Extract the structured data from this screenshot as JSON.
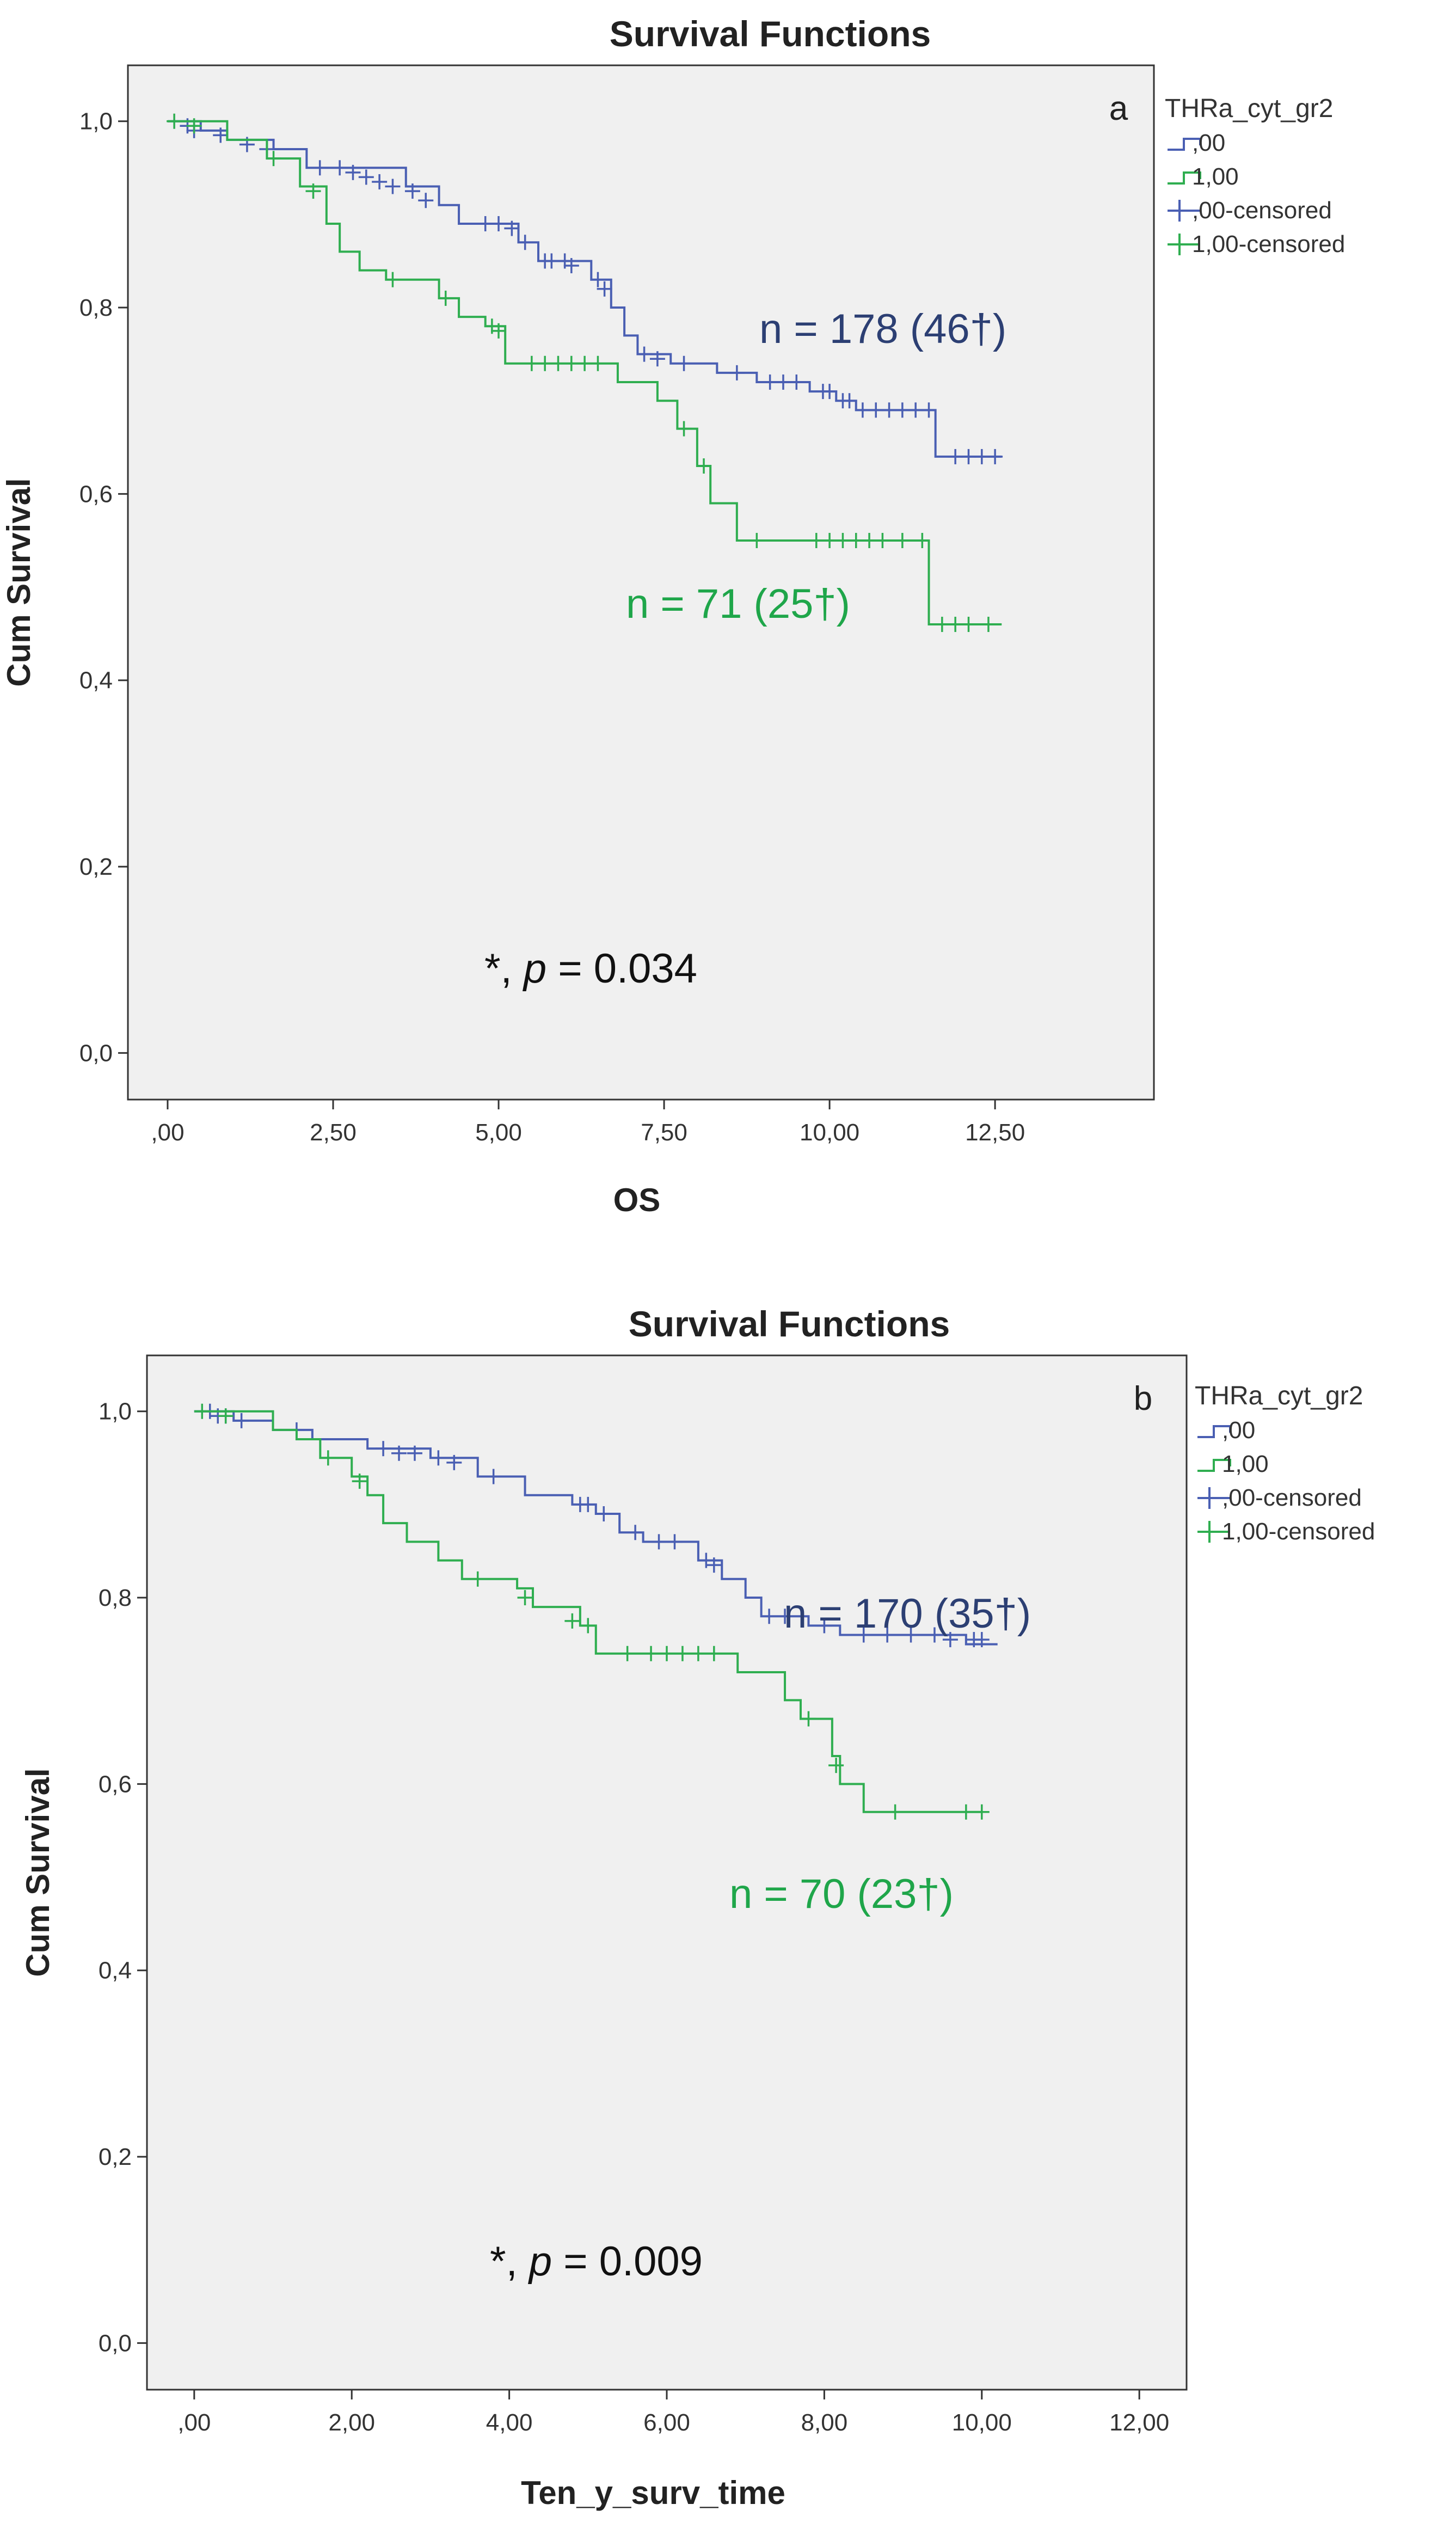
{
  "chart_data": [
    {
      "type": "line",
      "title": "Survival Functions",
      "panel_label": "a",
      "xlabel": "OS",
      "ylabel": "Cum Survival",
      "xlim": [
        -0.6,
        14.9
      ],
      "ylim": [
        -0.05,
        1.06
      ],
      "xticks": [
        0,
        2.5,
        5,
        7.5,
        10,
        12.5
      ],
      "xtick_labels": [
        ",00",
        "2,50",
        "5,00",
        "7,50",
        "10,00",
        "12,50"
      ],
      "yticks": [
        0,
        0.2,
        0.4,
        0.6,
        0.8,
        1.0
      ],
      "ytick_labels": [
        "0,0",
        "0,2",
        "0,4",
        "0,6",
        "0,8",
        "1,0"
      ],
      "legend_title": "THRa_cyt_gr2",
      "legend_position": "outside-right",
      "legend": [
        ",00",
        "1,00",
        ",00-censored",
        "1,00-censored"
      ],
      "colors": {
        "g0": "#4a5fb3",
        "g1": "#2fae50",
        "ann0": "#2c3f73",
        "ann1": "#1fa64a"
      },
      "series": [
        {
          "name": ",00",
          "steps": [
            [
              0,
              1.0
            ],
            [
              0.5,
              0.99
            ],
            [
              0.9,
              0.98
            ],
            [
              1.6,
              0.97
            ],
            [
              2.1,
              0.95
            ],
            [
              3.6,
              0.93
            ],
            [
              4.1,
              0.91
            ],
            [
              4.4,
              0.89
            ],
            [
              5.3,
              0.87
            ],
            [
              5.6,
              0.85
            ],
            [
              6.4,
              0.83
            ],
            [
              6.7,
              0.8
            ],
            [
              6.9,
              0.77
            ],
            [
              7.1,
              0.75
            ],
            [
              7.6,
              0.74
            ],
            [
              8.3,
              0.73
            ],
            [
              8.9,
              0.72
            ],
            [
              9.7,
              0.71
            ],
            [
              10.1,
              0.7
            ],
            [
              10.4,
              0.69
            ],
            [
              11.6,
              0.64
            ],
            [
              12.6,
              0.64
            ]
          ],
          "censored": [
            [
              0.3,
              0.995
            ],
            [
              0.4,
              0.99
            ],
            [
              0.8,
              0.985
            ],
            [
              1.2,
              0.975
            ],
            [
              1.5,
              0.97
            ],
            [
              2.3,
              0.95
            ],
            [
              2.6,
              0.95
            ],
            [
              2.8,
              0.945
            ],
            [
              3.0,
              0.94
            ],
            [
              3.2,
              0.935
            ],
            [
              3.4,
              0.93
            ],
            [
              3.7,
              0.925
            ],
            [
              3.9,
              0.915
            ],
            [
              4.8,
              0.89
            ],
            [
              5.0,
              0.89
            ],
            [
              5.2,
              0.885
            ],
            [
              5.4,
              0.87
            ],
            [
              5.7,
              0.85
            ],
            [
              5.8,
              0.85
            ],
            [
              6.0,
              0.85
            ],
            [
              6.1,
              0.845
            ],
            [
              6.5,
              0.83
            ],
            [
              6.6,
              0.82
            ],
            [
              7.2,
              0.75
            ],
            [
              7.4,
              0.745
            ],
            [
              7.8,
              0.74
            ],
            [
              8.6,
              0.73
            ],
            [
              9.1,
              0.72
            ],
            [
              9.3,
              0.72
            ],
            [
              9.5,
              0.72
            ],
            [
              9.9,
              0.71
            ],
            [
              10.0,
              0.71
            ],
            [
              10.2,
              0.7
            ],
            [
              10.3,
              0.7
            ],
            [
              10.5,
              0.69
            ],
            [
              10.7,
              0.69
            ],
            [
              10.9,
              0.69
            ],
            [
              11.1,
              0.69
            ],
            [
              11.3,
              0.69
            ],
            [
              11.5,
              0.69
            ],
            [
              11.9,
              0.64
            ],
            [
              12.1,
              0.64
            ],
            [
              12.3,
              0.64
            ],
            [
              12.5,
              0.64
            ]
          ]
        },
        {
          "name": "1,00",
          "steps": [
            [
              0,
              1.0
            ],
            [
              0.9,
              0.98
            ],
            [
              1.5,
              0.96
            ],
            [
              2.0,
              0.93
            ],
            [
              2.4,
              0.89
            ],
            [
              2.6,
              0.86
            ],
            [
              2.9,
              0.84
            ],
            [
              3.3,
              0.83
            ],
            [
              4.1,
              0.81
            ],
            [
              4.4,
              0.79
            ],
            [
              4.8,
              0.78
            ],
            [
              5.1,
              0.74
            ],
            [
              6.8,
              0.72
            ],
            [
              7.4,
              0.7
            ],
            [
              7.7,
              0.67
            ],
            [
              8.0,
              0.63
            ],
            [
              8.2,
              0.59
            ],
            [
              8.6,
              0.55
            ],
            [
              11.5,
              0.46
            ],
            [
              12.6,
              0.46
            ]
          ],
          "censored": [
            [
              0.1,
              1.0
            ],
            [
              0.4,
              0.995
            ],
            [
              1.6,
              0.96
            ],
            [
              2.2,
              0.925
            ],
            [
              3.4,
              0.83
            ],
            [
              4.2,
              0.81
            ],
            [
              4.9,
              0.78
            ],
            [
              5.0,
              0.775
            ],
            [
              5.5,
              0.74
            ],
            [
              5.7,
              0.74
            ],
            [
              5.9,
              0.74
            ],
            [
              6.1,
              0.74
            ],
            [
              6.3,
              0.74
            ],
            [
              6.5,
              0.74
            ],
            [
              7.8,
              0.67
            ],
            [
              8.1,
              0.63
            ],
            [
              8.9,
              0.55
            ],
            [
              9.8,
              0.55
            ],
            [
              10.0,
              0.55
            ],
            [
              10.2,
              0.55
            ],
            [
              10.4,
              0.55
            ],
            [
              10.6,
              0.55
            ],
            [
              10.8,
              0.55
            ],
            [
              11.1,
              0.55
            ],
            [
              11.4,
              0.55
            ],
            [
              11.7,
              0.46
            ],
            [
              11.9,
              0.46
            ],
            [
              12.1,
              0.46
            ],
            [
              12.4,
              0.46
            ]
          ]
        }
      ],
      "annotations": [
        {
          "text": "n = 178 (46†)",
          "series": 0
        },
        {
          "text": "n = 71 (25†)",
          "series": 1
        }
      ],
      "pvalue": {
        "prefix": "*, ",
        "italic": "p",
        "suffix": " = 0.034"
      }
    },
    {
      "type": "line",
      "title": "Survival Functions",
      "panel_label": "b",
      "xlabel": "Ten_y_surv_time",
      "ylabel": "Cum Survival",
      "xlim": [
        -0.6,
        12.6
      ],
      "ylim": [
        -0.05,
        1.06
      ],
      "xticks": [
        0,
        2,
        4,
        6,
        8,
        10,
        12
      ],
      "xtick_labels": [
        ",00",
        "2,00",
        "4,00",
        "6,00",
        "8,00",
        "10,00",
        "12,00"
      ],
      "yticks": [
        0,
        0.2,
        0.4,
        0.6,
        0.8,
        1.0
      ],
      "ytick_labels": [
        "0,0",
        "0,2",
        "0,4",
        "0,6",
        "0,8",
        "1,0"
      ],
      "legend_title": "THRa_cyt_gr2",
      "legend_position": "outside-right",
      "legend": [
        ",00",
        "1,00",
        ",00-censored",
        "1,00-censored"
      ],
      "colors": {
        "g0": "#4a5fb3",
        "g1": "#2fae50",
        "ann0": "#2c3f73",
        "ann1": "#1fa64a"
      },
      "series": [
        {
          "name": ",00",
          "steps": [
            [
              0,
              1.0
            ],
            [
              0.5,
              0.99
            ],
            [
              1.0,
              0.98
            ],
            [
              1.5,
              0.97
            ],
            [
              2.2,
              0.96
            ],
            [
              3.0,
              0.95
            ],
            [
              3.6,
              0.93
            ],
            [
              4.2,
              0.91
            ],
            [
              4.8,
              0.9
            ],
            [
              5.1,
              0.89
            ],
            [
              5.4,
              0.87
            ],
            [
              5.7,
              0.86
            ],
            [
              6.4,
              0.84
            ],
            [
              6.7,
              0.82
            ],
            [
              7.0,
              0.8
            ],
            [
              7.2,
              0.78
            ],
            [
              7.8,
              0.77
            ],
            [
              8.2,
              0.76
            ],
            [
              9.8,
              0.75
            ],
            [
              10.2,
              0.75
            ]
          ],
          "censored": [
            [
              0.2,
              1.0
            ],
            [
              0.3,
              0.995
            ],
            [
              0.4,
              0.995
            ],
            [
              0.6,
              0.99
            ],
            [
              1.3,
              0.98
            ],
            [
              2.4,
              0.96
            ],
            [
              2.6,
              0.955
            ],
            [
              2.8,
              0.955
            ],
            [
              3.1,
              0.95
            ],
            [
              3.3,
              0.945
            ],
            [
              3.8,
              0.93
            ],
            [
              4.9,
              0.9
            ],
            [
              5.0,
              0.9
            ],
            [
              5.2,
              0.89
            ],
            [
              5.6,
              0.87
            ],
            [
              5.9,
              0.86
            ],
            [
              6.1,
              0.86
            ],
            [
              6.5,
              0.84
            ],
            [
              6.6,
              0.835
            ],
            [
              7.3,
              0.78
            ],
            [
              7.5,
              0.78
            ],
            [
              8.0,
              0.77
            ],
            [
              8.5,
              0.76
            ],
            [
              8.8,
              0.76
            ],
            [
              9.1,
              0.76
            ],
            [
              9.4,
              0.76
            ],
            [
              9.6,
              0.755
            ],
            [
              9.9,
              0.755
            ],
            [
              10.0,
              0.755
            ]
          ]
        },
        {
          "name": "1,00",
          "steps": [
            [
              0,
              1.0
            ],
            [
              1.0,
              0.98
            ],
            [
              1.3,
              0.97
            ],
            [
              1.6,
              0.95
            ],
            [
              2.0,
              0.93
            ],
            [
              2.2,
              0.91
            ],
            [
              2.4,
              0.88
            ],
            [
              2.7,
              0.86
            ],
            [
              3.1,
              0.84
            ],
            [
              3.4,
              0.82
            ],
            [
              4.1,
              0.81
            ],
            [
              4.3,
              0.79
            ],
            [
              4.9,
              0.77
            ],
            [
              5.1,
              0.74
            ],
            [
              6.9,
              0.72
            ],
            [
              7.5,
              0.69
            ],
            [
              7.7,
              0.67
            ],
            [
              8.1,
              0.63
            ],
            [
              8.2,
              0.6
            ],
            [
              8.5,
              0.57
            ],
            [
              10.0,
              0.57
            ]
          ],
          "censored": [
            [
              0.1,
              1.0
            ],
            [
              0.4,
              0.995
            ],
            [
              1.7,
              0.95
            ],
            [
              2.1,
              0.925
            ],
            [
              3.6,
              0.82
            ],
            [
              4.2,
              0.8
            ],
            [
              4.8,
              0.775
            ],
            [
              5.0,
              0.77
            ],
            [
              5.5,
              0.74
            ],
            [
              5.8,
              0.74
            ],
            [
              6.0,
              0.74
            ],
            [
              6.2,
              0.74
            ],
            [
              6.4,
              0.74
            ],
            [
              6.6,
              0.74
            ],
            [
              7.8,
              0.67
            ],
            [
              8.15,
              0.62
            ],
            [
              8.9,
              0.57
            ],
            [
              9.8,
              0.57
            ],
            [
              10.0,
              0.57
            ]
          ]
        }
      ],
      "annotations": [
        {
          "text": "n = 170 (35†)",
          "series": 0
        },
        {
          "text": "n = 70 (23†)",
          "series": 1
        }
      ],
      "pvalue": {
        "prefix": "*, ",
        "italic": "p",
        "suffix": " = 0.009"
      }
    }
  ]
}
